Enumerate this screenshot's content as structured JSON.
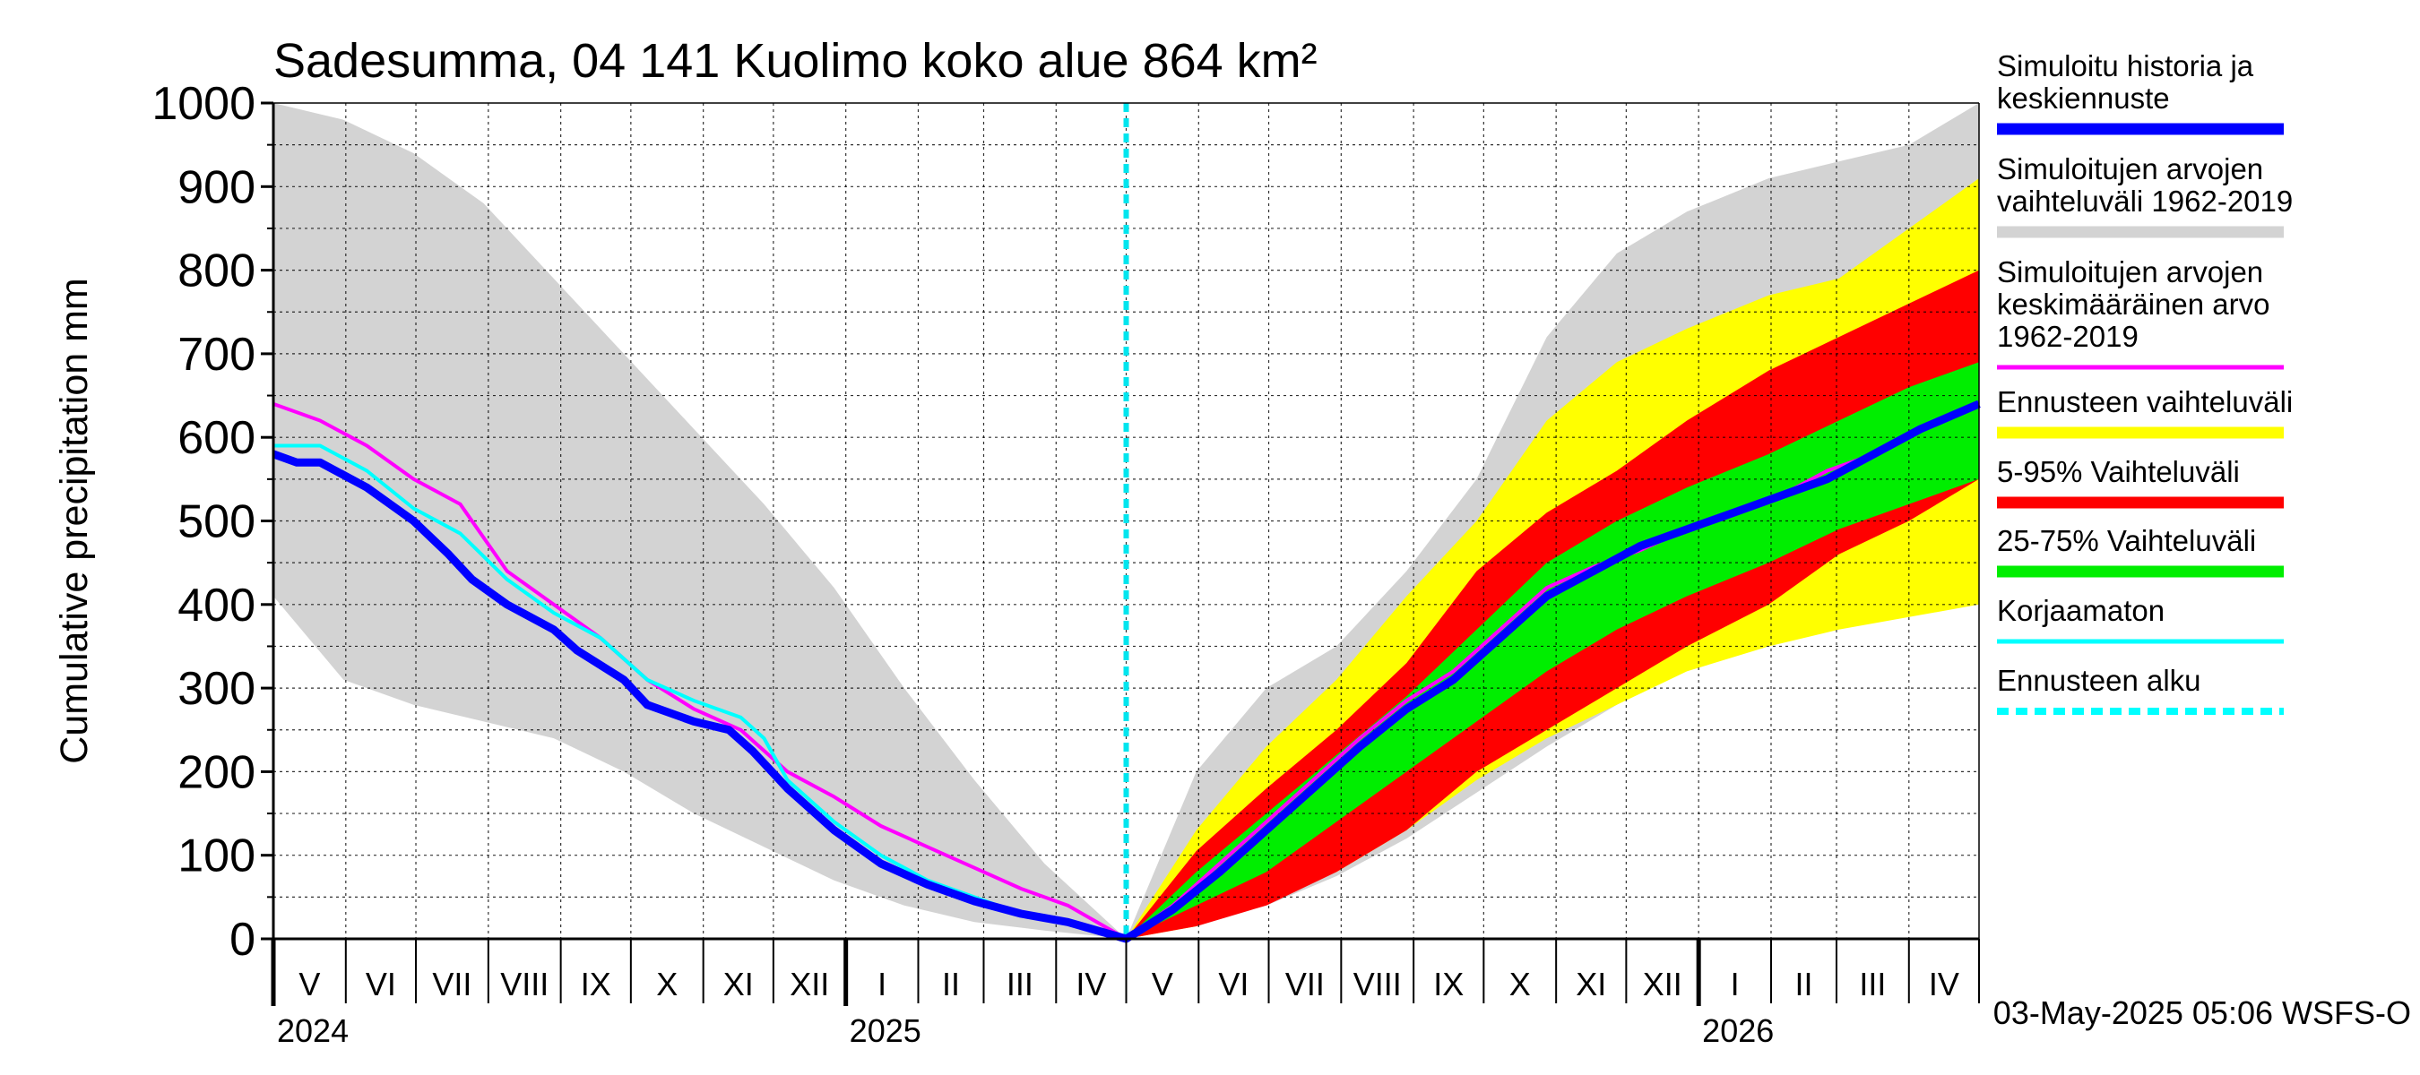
{
  "chart_data": {
    "type": "area",
    "title": "Sadesumma, 04 141 Kuolimo koko alue 864 km²",
    "ylabel": "Cumulative precipitation   mm",
    "ylim": [
      0,
      1000
    ],
    "yticks": [
      "0",
      "100",
      "200",
      "300",
      "400",
      "500",
      "600",
      "700",
      "800",
      "900",
      "1000"
    ],
    "x_range_days": [
      0,
      730
    ],
    "forecast_start_day": 365,
    "months": [
      {
        "label": "V",
        "start": 0
      },
      {
        "label": "VI",
        "start": 31
      },
      {
        "label": "VII",
        "start": 61
      },
      {
        "label": "VIII",
        "start": 92
      },
      {
        "label": "IX",
        "start": 123
      },
      {
        "label": "X",
        "start": 153
      },
      {
        "label": "XI",
        "start": 184
      },
      {
        "label": "XII",
        "start": 214
      },
      {
        "label": "I",
        "start": 245
      },
      {
        "label": "II",
        "start": 276
      },
      {
        "label": "III",
        "start": 304
      },
      {
        "label": "IV",
        "start": 335
      },
      {
        "label": "V",
        "start": 365
      },
      {
        "label": "VI",
        "start": 396
      },
      {
        "label": "VII",
        "start": 426
      },
      {
        "label": "VIII",
        "start": 457
      },
      {
        "label": "IX",
        "start": 488
      },
      {
        "label": "X",
        "start": 518
      },
      {
        "label": "XI",
        "start": 549
      },
      {
        "label": "XII",
        "start": 579
      },
      {
        "label": "I",
        "start": 610
      },
      {
        "label": "II",
        "start": 641
      },
      {
        "label": "III",
        "start": 669
      },
      {
        "label": "IV",
        "start": 700
      }
    ],
    "years": [
      {
        "label": "2024",
        "day": 0
      },
      {
        "label": "2025",
        "day": 245
      },
      {
        "label": "2026",
        "day": 610
      }
    ],
    "series": [
      {
        "name": "Simuloitujen arvojen vaihteluväli 1962-2019 (history)",
        "kind": "band",
        "color": "#d3d3d3",
        "x": [
          0,
          30,
          60,
          90,
          120,
          150,
          180,
          210,
          240,
          270,
          300,
          330,
          365
        ],
        "upper": [
          1000,
          980,
          940,
          880,
          790,
          700,
          610,
          520,
          420,
          300,
          190,
          90,
          0
        ],
        "lower": [
          410,
          310,
          280,
          260,
          240,
          200,
          150,
          110,
          70,
          40,
          20,
          10,
          0
        ]
      },
      {
        "name": "Simuloitujen arvojen vaihteluväli 1962-2019 (forecast)",
        "kind": "band",
        "color": "#d3d3d3",
        "x": [
          365,
          395,
          425,
          455,
          485,
          515,
          545,
          575,
          605,
          640,
          670,
          700,
          730
        ],
        "upper": [
          0,
          200,
          300,
          350,
          440,
          550,
          720,
          820,
          870,
          910,
          930,
          950,
          1000
        ],
        "lower": [
          0,
          15,
          40,
          75,
          120,
          175,
          230,
          280,
          330,
          360,
          375,
          390,
          410
        ]
      },
      {
        "name": "Ennusteen vaihteluväli",
        "kind": "band",
        "color": "#ffff00",
        "x": [
          365,
          395,
          425,
          455,
          485,
          515,
          545,
          575,
          605,
          640,
          670,
          700,
          730
        ],
        "upper": [
          0,
          130,
          230,
          310,
          410,
          500,
          620,
          690,
          730,
          770,
          790,
          850,
          910
        ],
        "lower": [
          0,
          15,
          45,
          80,
          130,
          190,
          240,
          280,
          320,
          350,
          370,
          385,
          400
        ]
      },
      {
        "name": "5-95% Vaihteluväli",
        "kind": "band",
        "color": "#ff0000",
        "x": [
          365,
          395,
          425,
          455,
          485,
          515,
          545,
          575,
          605,
          640,
          670,
          700,
          730
        ],
        "upper": [
          0,
          105,
          180,
          250,
          330,
          440,
          510,
          560,
          620,
          680,
          720,
          760,
          800
        ],
        "lower": [
          0,
          15,
          40,
          80,
          130,
          200,
          250,
          300,
          350,
          400,
          460,
          500,
          550
        ]
      },
      {
        "name": "25-75% Vaihteluväli",
        "kind": "band",
        "color": "#00ee00",
        "x": [
          365,
          395,
          425,
          455,
          485,
          515,
          545,
          575,
          605,
          640,
          670,
          700,
          730
        ],
        "upper": [
          0,
          80,
          150,
          220,
          290,
          370,
          450,
          500,
          540,
          580,
          620,
          660,
          690
        ],
        "lower": [
          0,
          40,
          80,
          140,
          200,
          260,
          320,
          370,
          410,
          450,
          490,
          520,
          550
        ]
      },
      {
        "name": "Simuloitujen arvojen keskimääräinen arvo 1962-2019",
        "kind": "line",
        "color": "#ff00ff",
        "width": 4,
        "x": [
          0,
          20,
          40,
          60,
          80,
          100,
          120,
          140,
          160,
          180,
          200,
          220,
          240,
          260,
          280,
          300,
          320,
          340,
          365,
          385,
          405,
          425,
          445,
          465,
          485,
          505,
          525,
          545,
          565,
          585,
          605,
          625,
          645,
          665,
          685,
          705,
          730
        ],
        "y": [
          640,
          620,
          590,
          550,
          520,
          440,
          400,
          360,
          310,
          275,
          250,
          200,
          170,
          135,
          110,
          85,
          60,
          40,
          0,
          40,
          90,
          140,
          190,
          240,
          285,
          320,
          370,
          420,
          445,
          465,
          490,
          510,
          530,
          560,
          580,
          610,
          640
        ]
      },
      {
        "name": "Korjaamaton",
        "kind": "line",
        "color": "#00ffff",
        "width": 4,
        "x": [
          0,
          20,
          40,
          60,
          80,
          100,
          120,
          140,
          160,
          180,
          200,
          210,
          220,
          240,
          260,
          280,
          300,
          320,
          340,
          365
        ],
        "y": [
          590,
          590,
          560,
          515,
          485,
          430,
          390,
          360,
          310,
          285,
          265,
          240,
          190,
          140,
          100,
          70,
          50,
          30,
          20,
          0
        ]
      },
      {
        "name": "Simuloitu historia ja keskiennuste",
        "kind": "line",
        "color": "#0000ff",
        "width": 9,
        "x": [
          0,
          10,
          20,
          40,
          60,
          75,
          85,
          100,
          120,
          130,
          150,
          160,
          180,
          195,
          205,
          220,
          240,
          260,
          280,
          300,
          320,
          340,
          365,
          385,
          405,
          425,
          445,
          465,
          485,
          505,
          525,
          545,
          565,
          585,
          605,
          625,
          645,
          665,
          685,
          705,
          730
        ],
        "y": [
          580,
          570,
          570,
          540,
          500,
          460,
          430,
          400,
          370,
          345,
          310,
          280,
          260,
          250,
          225,
          180,
          130,
          90,
          65,
          45,
          30,
          20,
          0,
          35,
          80,
          130,
          180,
          230,
          275,
          310,
          360,
          410,
          440,
          470,
          490,
          510,
          530,
          550,
          580,
          610,
          640
        ]
      }
    ],
    "legend": [
      {
        "label": "Simuloitu historia ja keskiennuste",
        "color": "#0000ff",
        "style": "thick"
      },
      {
        "label": "Simuloitujen arvojen vaihteluväli 1962-2019",
        "color": "#d3d3d3",
        "style": "thick"
      },
      {
        "label": "Simuloitujen arvojen keskimääräinen arvo    1962-2019",
        "color": "#ff00ff",
        "style": "thin"
      },
      {
        "label": "Ennusteen vaihteluväli",
        "color": "#ffff00",
        "style": "thick"
      },
      {
        "label": "5-95% Vaihteluväli",
        "color": "#ff0000",
        "style": "thick"
      },
      {
        "label": "25-75% Vaihteluväli",
        "color": "#00ee00",
        "style": "thick"
      },
      {
        "label": "Korjaamaton",
        "color": "#00ffff",
        "style": "thin"
      },
      {
        "label": "Ennusteen alku",
        "color": "#00ffff",
        "style": "dashed"
      }
    ],
    "footer": "03-May-2025 05:06 WSFS-O"
  }
}
